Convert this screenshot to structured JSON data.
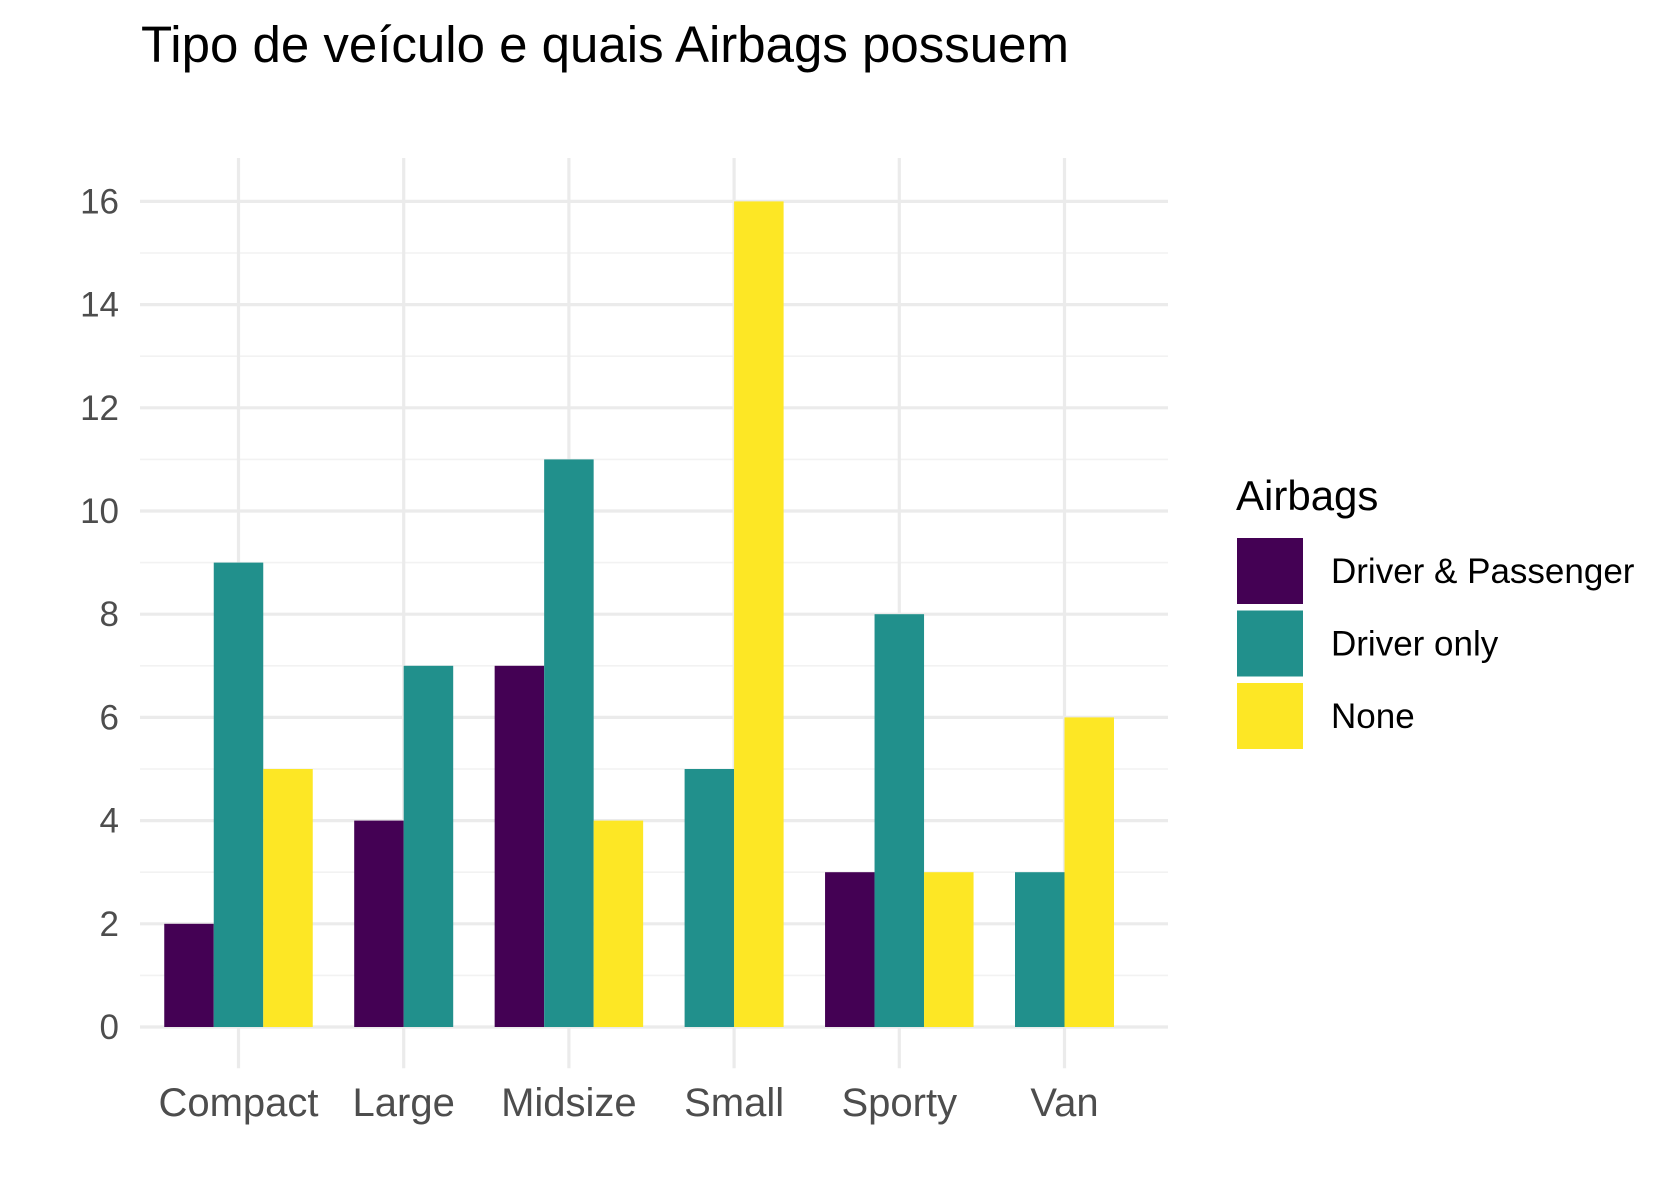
{
  "chart_data": {
    "type": "bar",
    "title": "Tipo de veículo e quais Airbags possuem",
    "xlabel": "",
    "ylabel": "",
    "categories": [
      "Compact",
      "Large",
      "Midsize",
      "Small",
      "Sporty",
      "Van"
    ],
    "series": [
      {
        "name": "Driver & Passenger",
        "color": "#440154",
        "values": [
          2,
          4,
          7,
          0,
          3,
          0
        ]
      },
      {
        "name": "Driver only",
        "color": "#21908C",
        "values": [
          9,
          7,
          11,
          5,
          8,
          3
        ]
      },
      {
        "name": "None",
        "color": "#FDE725",
        "values": [
          5,
          0,
          4,
          16,
          3,
          6
        ]
      }
    ],
    "ylim": [
      0,
      16.8
    ],
    "yticks": [
      "0",
      "2",
      "4",
      "6",
      "8",
      "10",
      "12",
      "14",
      "16"
    ],
    "ytick_values": [
      0,
      2,
      4,
      6,
      8,
      10,
      12,
      14,
      16
    ],
    "grid": true,
    "bar_layout": "grouped",
    "legend": {
      "title": "Airbags",
      "position": "right"
    }
  }
}
